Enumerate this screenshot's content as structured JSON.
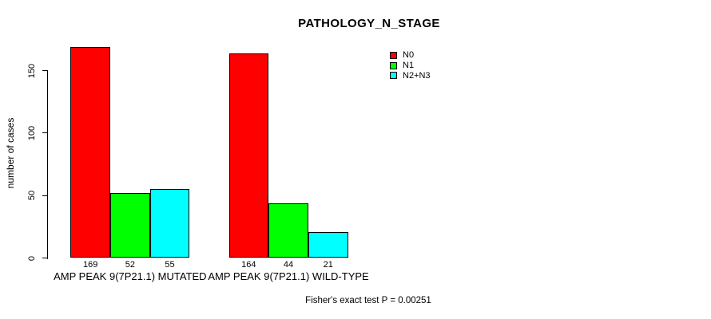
{
  "chart_data": {
    "type": "bar",
    "title": "PATHOLOGY_N_STAGE",
    "ylabel": "number of cases",
    "xlabel": "",
    "ylim": [
      0,
      150
    ],
    "yticks": [
      0,
      50,
      100,
      150
    ],
    "categories": [
      "AMP PEAK 9(7P21.1) MUTATED",
      "AMP PEAK 9(7P21.1) WILD-TYPE"
    ],
    "series": [
      {
        "name": "N0",
        "color": "#ff0000",
        "values": [
          169,
          164
        ]
      },
      {
        "name": "N1",
        "color": "#00ff00",
        "values": [
          52,
          44
        ]
      },
      {
        "name": "N2+N3",
        "color": "#00ffff",
        "values": [
          55,
          21
        ]
      }
    ],
    "show_value_labels": true,
    "value_labels": [
      [
        "169",
        "52",
        "55"
      ],
      [
        "164",
        "44",
        "21"
      ]
    ],
    "legend_position": "top-right",
    "grid": false,
    "annotation": "Fisher's exact test P = 0.00251",
    "bar_border_color": "#000000",
    "text_color": "#000000",
    "background_color": "#ffffff"
  }
}
